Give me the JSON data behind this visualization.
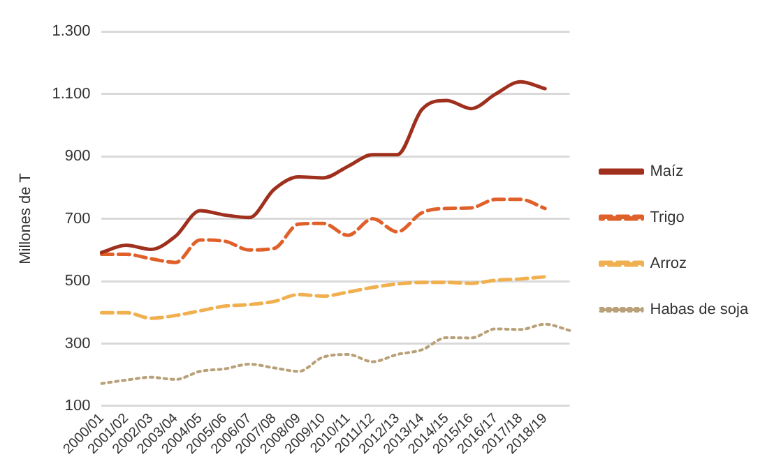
{
  "chart_data": {
    "type": "line",
    "ylabel": "Millones de T",
    "categories": [
      "2000/01",
      "2001/02",
      "2002/03",
      "2003/04",
      "2004/05",
      "2005/06",
      "2006/07",
      "2007/08",
      "2008/09",
      "2009/10",
      "2010/11",
      "2011/12",
      "2012/13",
      "2013/14",
      "2014/15",
      "2015/16",
      "2016/17",
      "2017/18",
      "2018/19",
      null
    ],
    "series": [
      {
        "name": "Maíz",
        "color": "#a0301e",
        "line_style": "solid",
        "values": [
          592,
          615,
          602,
          644,
          726,
          712,
          704,
          794,
          834,
          831,
          868,
          905,
          905,
          1050,
          1079,
          1053,
          1100,
          1139,
          1117,
          null
        ]
      },
      {
        "name": "Trigo",
        "color": "#e0602a",
        "line_style": "dashed",
        "values": [
          586,
          586,
          572,
          560,
          632,
          628,
          600,
          605,
          683,
          685,
          647,
          700,
          658,
          719,
          733,
          735,
          762,
          762,
          733,
          null
        ]
      },
      {
        "name": "Arroz",
        "color": "#f0b050",
        "line_style": "dashed",
        "values": [
          399,
          399,
          381,
          390,
          405,
          420,
          425,
          435,
          457,
          452,
          465,
          480,
          491,
          496,
          496,
          493,
          503,
          507,
          514,
          null
        ]
      },
      {
        "name": "Habas de soja",
        "color": "#b8a078",
        "line_style": "dotted",
        "values": [
          172,
          183,
          192,
          185,
          211,
          219,
          234,
          222,
          211,
          257,
          265,
          242,
          265,
          280,
          319,
          318,
          347,
          345,
          362,
          342
        ]
      }
    ],
    "ylim": [
      100,
      1300
    ],
    "yticks": [
      100,
      300,
      500,
      700,
      900,
      {
        "value": 1100,
        "label": "1.100"
      },
      {
        "value": 1300,
        "label": "1.300"
      }
    ],
    "grid": "y",
    "legend": "right",
    "marker": "none"
  }
}
